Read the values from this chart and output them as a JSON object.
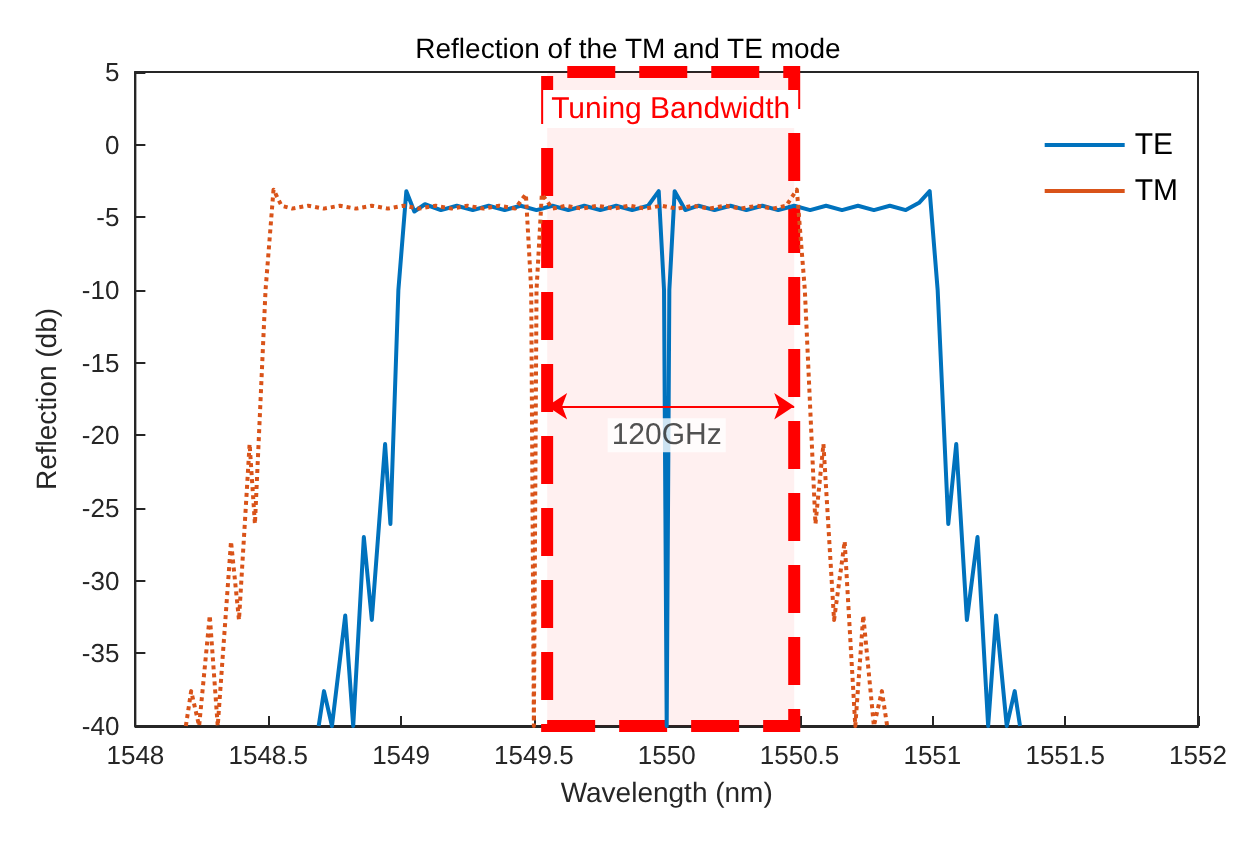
{
  "chart_data": {
    "type": "line",
    "title": "Reflection of the TM and TE mode",
    "xlabel": "Wavelength (nm)",
    "ylabel": "Reflection (db)",
    "xlim": [
      1548,
      1552
    ],
    "xticks": [
      1548,
      1548.5,
      1549,
      1549.5,
      1550,
      1550.5,
      1551,
      1551.5,
      1552
    ],
    "ylim": [
      -40,
      5
    ],
    "yticks": [
      -40,
      -35,
      -30,
      -25,
      -20,
      -15,
      -10,
      -5,
      0,
      5
    ],
    "grid": false,
    "legend": "top right",
    "marker": "none",
    "series": [
      {
        "name": "TE",
        "color": "#0072bd",
        "line_style": "solid",
        "x": [
          1548.69,
          1548.71,
          1548.74,
          1548.79,
          1548.82,
          1548.86,
          1548.89,
          1548.94,
          1548.96,
          1548.99,
          1549.02,
          1549.05,
          1549.09,
          1549.15,
          1549.21,
          1549.27,
          1549.33,
          1549.39,
          1549.45,
          1549.51,
          1549.57,
          1549.63,
          1549.69,
          1549.75,
          1549.81,
          1549.87,
          1549.93,
          1549.97,
          1549.99,
          1550.0,
          1550.01,
          1550.03,
          1550.07,
          1550.12,
          1550.18,
          1550.24,
          1550.3,
          1550.36,
          1550.42,
          1550.48,
          1550.54,
          1550.6,
          1550.66,
          1550.72,
          1550.78,
          1550.84,
          1550.9,
          1550.95,
          1550.99,
          1551.02,
          1551.06,
          1551.09,
          1551.13,
          1551.17,
          1551.21,
          1551.24,
          1551.28,
          1551.31,
          1551.33
        ],
        "values": [
          -40,
          -37.6,
          -40,
          -32.4,
          -40,
          -27.0,
          -32.7,
          -20.6,
          -26.1,
          -10,
          -3.2,
          -4.6,
          -4.1,
          -4.5,
          -4.2,
          -4.5,
          -4.2,
          -4.5,
          -4.2,
          -4.5,
          -4.2,
          -4.5,
          -4.2,
          -4.5,
          -4.2,
          -4.5,
          -4.2,
          -3.2,
          -10,
          -40,
          -10,
          -3.2,
          -4.5,
          -4.2,
          -4.5,
          -4.2,
          -4.5,
          -4.2,
          -4.5,
          -4.2,
          -4.5,
          -4.2,
          -4.5,
          -4.2,
          -4.5,
          -4.2,
          -4.5,
          -4.0,
          -3.2,
          -10,
          -26.1,
          -20.6,
          -32.7,
          -27.0,
          -40,
          -32.4,
          -40,
          -37.6,
          -40
        ]
      },
      {
        "name": "TM",
        "color": "#d95319",
        "line_style": "dotted",
        "x": [
          1548.19,
          1548.21,
          1548.24,
          1548.28,
          1548.31,
          1548.36,
          1548.39,
          1548.43,
          1548.45,
          1548.49,
          1548.52,
          1548.55,
          1548.59,
          1548.65,
          1548.71,
          1548.77,
          1548.83,
          1548.89,
          1548.95,
          1549.01,
          1549.07,
          1549.13,
          1549.19,
          1549.25,
          1549.31,
          1549.37,
          1549.43,
          1549.47,
          1549.49,
          1549.5,
          1549.51,
          1549.53,
          1549.57,
          1549.62,
          1549.68,
          1549.74,
          1549.8,
          1549.86,
          1549.92,
          1549.98,
          1550.04,
          1550.1,
          1550.16,
          1550.22,
          1550.28,
          1550.34,
          1550.4,
          1550.45,
          1550.49,
          1550.52,
          1550.56,
          1550.59,
          1550.63,
          1550.67,
          1550.71,
          1550.74,
          1550.78,
          1550.81,
          1550.83
        ],
        "values": [
          -40,
          -37.6,
          -40,
          -32.4,
          -40,
          -27.3,
          -32.7,
          -20.6,
          -26.1,
          -10,
          -3.1,
          -4.2,
          -4.4,
          -4.2,
          -4.4,
          -4.2,
          -4.4,
          -4.2,
          -4.4,
          -4.2,
          -4.4,
          -4.2,
          -4.4,
          -4.2,
          -4.4,
          -4.2,
          -4.4,
          -3.4,
          -10,
          -40,
          -10,
          -3.4,
          -4.4,
          -4.2,
          -4.4,
          -4.2,
          -4.4,
          -4.2,
          -4.4,
          -4.2,
          -4.4,
          -4.2,
          -4.4,
          -4.2,
          -4.4,
          -4.2,
          -4.4,
          -4.2,
          -3.1,
          -10,
          -26.1,
          -20.6,
          -32.7,
          -27.3,
          -40,
          -32.4,
          -40,
          -37.6,
          -40
        ]
      }
    ],
    "bands": [
      {
        "axis": "x",
        "from": 1549.55,
        "to": 1550.48,
        "label": "Tuning Bandwidth",
        "color": "#ff0000"
      }
    ],
    "annotations": [
      {
        "text": "120GHz",
        "x": 1550,
        "y": -18
      }
    ]
  }
}
